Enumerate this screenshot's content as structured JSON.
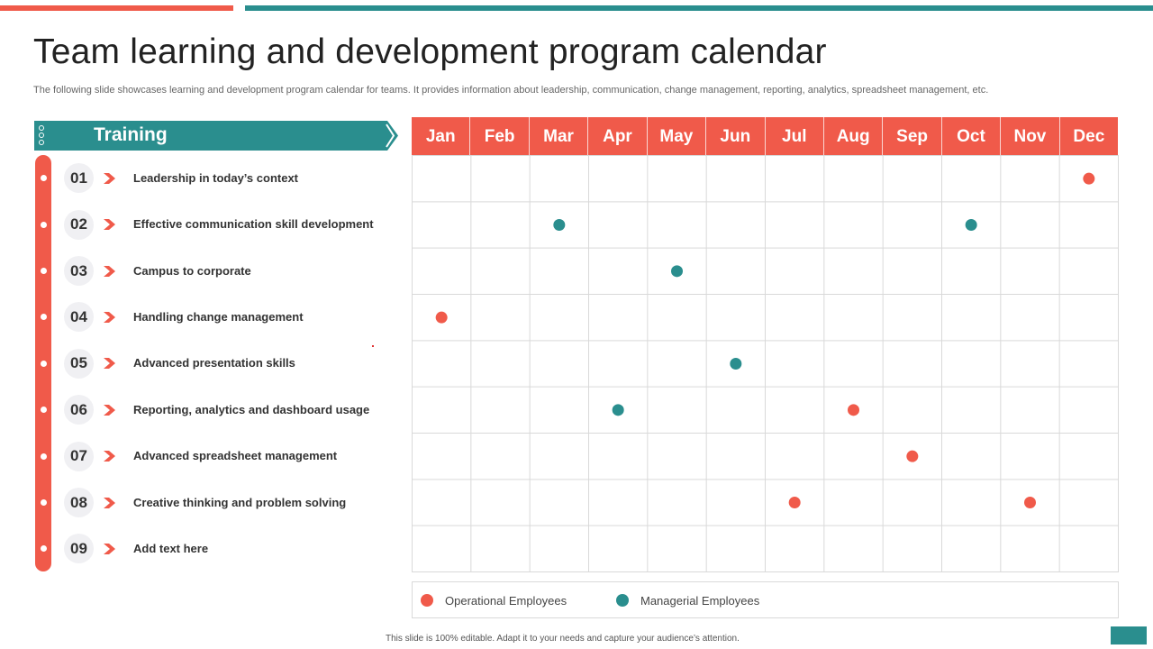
{
  "title": "Team learning and development program calendar",
  "subtitle": "The following slide showcases learning and development program calendar for teams. It provides information about leadership, communication, change management, reporting, analytics, spreadsheet management, etc.",
  "training_header": "Training",
  "months": [
    "Jan",
    "Feb",
    "Mar",
    "Apr",
    "May",
    "Jun",
    "Jul",
    "Aug",
    "Sep",
    "Oct",
    "Nov",
    "Dec"
  ],
  "items": [
    {
      "number": "01",
      "label": "Leadership in today’s context"
    },
    {
      "number": "02",
      "label": "Effective communication skill development"
    },
    {
      "number": "03",
      "label": "Campus to corporate"
    },
    {
      "number": "04",
      "label": "Handling change management"
    },
    {
      "number": "05",
      "label": "Advanced presentation skills"
    },
    {
      "number": "06",
      "label": "Reporting, analytics and dashboard usage"
    },
    {
      "number": "07",
      "label": "Advanced spreadsheet management"
    },
    {
      "number": "08",
      "label": "Creative thinking and problem solving"
    },
    {
      "number": "09",
      "label": "Add text here"
    }
  ],
  "markers": [
    {
      "training": "01",
      "month": "Dec",
      "type": "operational"
    },
    {
      "training": "02",
      "month": "Mar",
      "type": "managerial"
    },
    {
      "training": "02",
      "month": "Oct",
      "type": "managerial"
    },
    {
      "training": "03",
      "month": "May",
      "type": "managerial"
    },
    {
      "training": "04",
      "month": "Jan",
      "type": "operational"
    },
    {
      "training": "05",
      "month": "Jun",
      "type": "managerial"
    },
    {
      "training": "06",
      "month": "Apr",
      "type": "managerial"
    },
    {
      "training": "06",
      "month": "Aug",
      "type": "operational"
    },
    {
      "training": "07",
      "month": "Sep",
      "type": "operational"
    },
    {
      "training": "08",
      "month": "Jul",
      "type": "operational"
    },
    {
      "training": "08",
      "month": "Nov",
      "type": "operational"
    }
  ],
  "legend": {
    "operational": "Operational Employees",
    "managerial": "Managerial Employees"
  },
  "colors": {
    "operational": "#f05a4a",
    "managerial": "#2a8e8e"
  },
  "footer_note": "This slide is 100% editable. Adapt it to your needs and capture your audience’s attention."
}
